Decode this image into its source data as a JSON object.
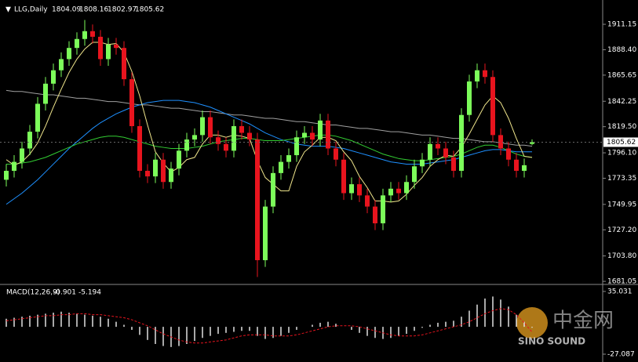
{
  "chart_data": [
    {
      "type": "candlestick",
      "title": "LLG,Daily",
      "up_color": "#7cfc5a",
      "down_color": "#e8141e",
      "background": "#000000",
      "categories": [
        null,
        null,
        null,
        null,
        null,
        null,
        null,
        null,
        null,
        null,
        null,
        null,
        null,
        null,
        null,
        null,
        null,
        null,
        null,
        null,
        null,
        null,
        null,
        null,
        null,
        null,
        null,
        null,
        null,
        null,
        null,
        null,
        null,
        null,
        null,
        null,
        null,
        null,
        null,
        null,
        null,
        null,
        null,
        null,
        null,
        null,
        null,
        null,
        null,
        null,
        null,
        null,
        null,
        null,
        null,
        null,
        null,
        null,
        null,
        null,
        null,
        null,
        null,
        null,
        null,
        null,
        null,
        null
      ],
      "open": [
        1772,
        1780,
        1788,
        1800,
        1815,
        1840,
        1858,
        1870,
        1880,
        1890,
        1898,
        1905,
        1900,
        1880,
        1893,
        1890,
        1862,
        1820,
        1780,
        1775,
        1790,
        1770,
        1782,
        1798,
        1808,
        1812,
        1828,
        1810,
        1804,
        1798,
        1820,
        1814,
        1808,
        1700,
        1748,
        1778,
        1788,
        1794,
        1810,
        1814,
        1808,
        1825,
        1800,
        1790,
        1760,
        1768,
        1758,
        1748,
        1733,
        1758,
        1764,
        1760,
        1770,
        1784,
        1790,
        1804,
        1800,
        1792,
        1780,
        1830,
        1860,
        1870,
        1864,
        1812,
        1800,
        1790,
        1780,
        1804.09
      ],
      "high": [
        1786,
        1794,
        1806,
        1821,
        1846,
        1864,
        1876,
        1886,
        1896,
        1904,
        1915,
        1911,
        1906,
        1899,
        1899,
        1896,
        1868,
        1826,
        1786,
        1796,
        1796,
        1788,
        1804,
        1814,
        1818,
        1834,
        1834,
        1816,
        1810,
        1826,
        1826,
        1820,
        1814,
        1754,
        1784,
        1794,
        1800,
        1816,
        1820,
        1820,
        1831,
        1831,
        1806,
        1796,
        1774,
        1774,
        1764,
        1754,
        1764,
        1770,
        1770,
        1776,
        1790,
        1796,
        1810,
        1810,
        1806,
        1798,
        1836,
        1866,
        1876,
        1876,
        1870,
        1818,
        1806,
        1796,
        1791,
        1808.16
      ],
      "low": [
        1766,
        1774,
        1782,
        1794,
        1809,
        1834,
        1852,
        1864,
        1874,
        1884,
        1892,
        1894,
        1874,
        1874,
        1884,
        1856,
        1814,
        1774,
        1769,
        1769,
        1764,
        1764,
        1776,
        1792,
        1802,
        1806,
        1804,
        1798,
        1792,
        1792,
        1808,
        1802,
        1685,
        1694,
        1742,
        1772,
        1782,
        1788,
        1804,
        1802,
        1802,
        1794,
        1784,
        1754,
        1754,
        1752,
        1742,
        1727,
        1727,
        1752,
        1754,
        1754,
        1764,
        1778,
        1784,
        1794,
        1786,
        1774,
        1774,
        1824,
        1854,
        1858,
        1806,
        1794,
        1784,
        1774,
        1774,
        1802.97
      ],
      "close": [
        1780,
        1788,
        1800,
        1815,
        1840,
        1858,
        1870,
        1880,
        1890,
        1898,
        1905,
        1900,
        1880,
        1893,
        1890,
        1862,
        1820,
        1780,
        1775,
        1790,
        1770,
        1782,
        1798,
        1808,
        1812,
        1828,
        1810,
        1804,
        1798,
        1820,
        1814,
        1808,
        1700,
        1748,
        1778,
        1788,
        1794,
        1810,
        1814,
        1808,
        1825,
        1800,
        1790,
        1760,
        1768,
        1758,
        1748,
        1733,
        1758,
        1764,
        1760,
        1770,
        1784,
        1790,
        1804,
        1800,
        1792,
        1780,
        1830,
        1860,
        1870,
        1864,
        1812,
        1800,
        1790,
        1780,
        1785,
        1805.62
      ],
      "series": [
        {
          "color": "#a0a0a0",
          "values": [
            1852,
            1851,
            1851,
            1850,
            1849,
            1848,
            1848,
            1847,
            1846,
            1845,
            1845,
            1844,
            1843,
            1842,
            1842,
            1841,
            1840,
            1839,
            1839,
            1838,
            1837,
            1836,
            1836,
            1835,
            1834,
            1833,
            1833,
            1832,
            1831,
            1830,
            1830,
            1829,
            1828,
            1827,
            1827,
            1826,
            1825,
            1824,
            1824,
            1823,
            1822,
            1821,
            1821,
            1820,
            1819,
            1818,
            1818,
            1817,
            1816,
            1815,
            1815,
            1814,
            1813,
            1812,
            1812,
            1811,
            1810,
            1809,
            1809,
            1808,
            1807,
            1806,
            1806,
            1805,
            1804,
            1803,
            1803,
            1802
          ]
        },
        {
          "color": "#1e90ff",
          "values": [
            1750,
            1755,
            1760,
            1766,
            1772,
            1779,
            1786,
            1793,
            1800,
            1806,
            1812,
            1818,
            1823,
            1827,
            1831,
            1834,
            1837,
            1839,
            1841,
            1842,
            1843,
            1843,
            1843,
            1842,
            1841,
            1839,
            1837,
            1834,
            1831,
            1828,
            1825,
            1822,
            1818,
            1814,
            1811,
            1808,
            1806,
            1804,
            1803,
            1802,
            1802,
            1802,
            1801,
            1800,
            1798,
            1796,
            1794,
            1792,
            1790,
            1788,
            1787,
            1786,
            1786,
            1786,
            1787,
            1788,
            1789,
            1790,
            1792,
            1794,
            1796,
            1798,
            1799,
            1799,
            1798,
            1797,
            1797,
            1797
          ]
        },
        {
          "color": "#32cd32",
          "values": [
            1786,
            1786,
            1787,
            1788,
            1790,
            1792,
            1795,
            1798,
            1801,
            1804,
            1806,
            1808,
            1810,
            1811,
            1811,
            1810,
            1808,
            1806,
            1804,
            1802,
            1801,
            1800,
            1800,
            1800,
            1801,
            1802,
            1804,
            1806,
            1807,
            1808,
            1809,
            1809,
            1808,
            1807,
            1807,
            1807,
            1808,
            1809,
            1810,
            1811,
            1812,
            1812,
            1811,
            1809,
            1807,
            1804,
            1801,
            1798,
            1795,
            1793,
            1791,
            1790,
            1789,
            1789,
            1790,
            1791,
            1792,
            1793,
            1795,
            1798,
            1801,
            1803,
            1803,
            1801,
            1798,
            1795,
            1793,
            1792
          ]
        },
        {
          "color": "#f0e68c",
          "values": [
            1790,
            1785,
            1788,
            1795,
            1805,
            1820,
            1837,
            1853,
            1868,
            1880,
            1889,
            1895,
            1895,
            1893,
            1894,
            1886,
            1869,
            1847,
            1821,
            1797,
            1787,
            1779,
            1783,
            1790,
            1792,
            1804,
            1812,
            1812,
            1810,
            1812,
            1811,
            1809,
            1789,
            1774,
            1768,
            1762,
            1762,
            1784,
            1797,
            1803,
            1810,
            1810,
            1807,
            1797,
            1789,
            1775,
            1765,
            1753,
            1753,
            1752,
            1753,
            1759,
            1767,
            1774,
            1784,
            1790,
            1794,
            1793,
            1801,
            1813,
            1826,
            1839,
            1847,
            1841,
            1827,
            1809,
            1793,
            1792
          ]
        }
      ],
      "ylim": [
        1679,
        1929.4
      ],
      "yticks": [
        1911.15,
        {
          "value": 1888.4,
          "label": "1888.40"
        },
        1865.65,
        1842.25,
        {
          "value": 1819.5,
          "label": "1819.50"
        },
        {
          "value": 1796.1,
          "label": "1796.10"
        },
        1773.35,
        1749.95,
        {
          "value": 1727.2,
          "label": "1727.20"
        },
        {
          "value": 1703.8,
          "label": "1703.80"
        },
        1681.05
      ]
    },
    {
      "type": "macd",
      "title": "MACD(12,26,9)",
      "color": "#e0e0e0",
      "signal_color": "#e8141e",
      "values": [
        8,
        9,
        10,
        11,
        12,
        13,
        14,
        15,
        14,
        13,
        12,
        11,
        10,
        8,
        5,
        2,
        -3,
        -8,
        -13,
        -17,
        -19,
        -20,
        -19,
        -17,
        -14,
        -11,
        -9,
        -7,
        -6,
        -5,
        -4,
        -4,
        -9,
        -12,
        -11,
        -9,
        -6,
        -3,
        0,
        2,
        4,
        5,
        3,
        0,
        -3,
        -6,
        -9,
        -11,
        -12,
        -11,
        -9,
        -7,
        -4,
        -1,
        2,
        4,
        5,
        6,
        10,
        16,
        22,
        28,
        30,
        27,
        20,
        12,
        5,
        -0.901
      ],
      "signal": [
        6,
        7,
        8,
        9,
        10,
        11,
        11,
        12,
        12,
        13,
        13,
        12,
        12,
        11,
        10,
        9,
        7,
        4,
        1,
        -3,
        -7,
        -10,
        -13,
        -15,
        -16,
        -16,
        -15,
        -14,
        -13,
        -11,
        -9,
        -8,
        -8,
        -8,
        -9,
        -9,
        -9,
        -8,
        -6,
        -4,
        -2,
        0,
        1,
        1,
        1,
        0,
        -2,
        -4,
        -6,
        -8,
        -9,
        -9,
        -9,
        -8,
        -6,
        -4,
        -2,
        0,
        2,
        5,
        9,
        13,
        16,
        18,
        17,
        12,
        4,
        -5.194
      ],
      "ylim": [
        -34.85,
        41.2
      ],
      "yticks": [
        35.031,
        -27.087
      ]
    }
  ],
  "watermark": {
    "brand": "中金网",
    "english": "SINO SOUND"
  }
}
